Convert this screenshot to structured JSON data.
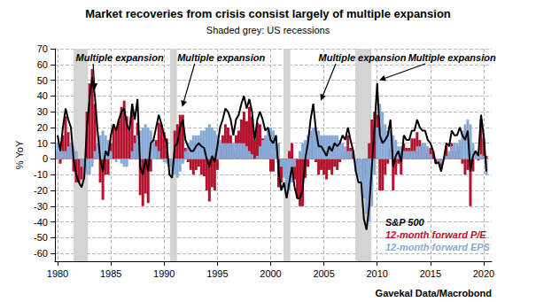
{
  "chart_data": {
    "type": "line",
    "title": "Market recoveries from crisis consist largely of multiple expansion",
    "subtitle": "Shaded grey: US recessions",
    "y_label": "% YoY",
    "source": "Gavekal Data/Macrobond",
    "xlim": [
      1979.75,
      2020.75
    ],
    "xticks": [
      1980,
      1985,
      1990,
      1995,
      2000,
      2005,
      2010,
      2015,
      2020
    ],
    "ylim": [
      -65,
      70
    ],
    "yticks": [
      -60,
      -50,
      -40,
      -30,
      -20,
      -10,
      0,
      10,
      20,
      30,
      40,
      50,
      60,
      70
    ],
    "grid": true,
    "stacked": true,
    "legend": "lower right",
    "recessions": [
      [
        1981.5,
        1982.85
      ],
      [
        1990.55,
        1991.2
      ],
      [
        2001.2,
        2001.85
      ],
      [
        2007.95,
        2009.45
      ]
    ],
    "annotations": [
      {
        "text": "Multiple expansion",
        "x": 1983.5,
        "y": 44
      },
      {
        "text": "Multiple expansion",
        "x": 1991.7,
        "y": 33
      },
      {
        "text": "Multiple expansion",
        "x": 2004.7,
        "y": 37
      },
      {
        "text": "Multiple expansion",
        "x": 2010.2,
        "y": 50
      }
    ],
    "x": [
      1980,
      1980.25,
      1980.5,
      1980.75,
      1981,
      1981.25,
      1981.5,
      1981.75,
      1982,
      1982.25,
      1982.5,
      1982.75,
      1983,
      1983.25,
      1983.5,
      1983.75,
      1984,
      1984.25,
      1984.5,
      1984.75,
      1985,
      1985.25,
      1985.5,
      1985.75,
      1986,
      1986.25,
      1986.5,
      1986.75,
      1987,
      1987.25,
      1987.5,
      1987.75,
      1988,
      1988.25,
      1988.5,
      1988.75,
      1989,
      1989.25,
      1989.5,
      1989.75,
      1990,
      1990.25,
      1990.5,
      1990.75,
      1991,
      1991.25,
      1991.5,
      1991.75,
      1992,
      1992.25,
      1992.5,
      1992.75,
      1993,
      1993.25,
      1993.5,
      1993.75,
      1994,
      1994.25,
      1994.5,
      1994.75,
      1995,
      1995.25,
      1995.5,
      1995.75,
      1996,
      1996.25,
      1996.5,
      1996.75,
      1997,
      1997.25,
      1997.5,
      1997.75,
      1998,
      1998.25,
      1998.5,
      1998.75,
      1999,
      1999.25,
      1999.5,
      1999.75,
      2000,
      2000.25,
      2000.5,
      2000.75,
      2001,
      2001.25,
      2001.5,
      2001.75,
      2002,
      2002.25,
      2002.5,
      2002.75,
      2003,
      2003.25,
      2003.5,
      2003.75,
      2004,
      2004.25,
      2004.5,
      2004.75,
      2005,
      2005.25,
      2005.5,
      2005.75,
      2006,
      2006.25,
      2006.5,
      2006.75,
      2007,
      2007.25,
      2007.5,
      2007.75,
      2008,
      2008.25,
      2008.5,
      2008.75,
      2009,
      2009.25,
      2009.5,
      2009.75,
      2010,
      2010.25,
      2010.5,
      2010.75,
      2011,
      2011.25,
      2011.5,
      2011.75,
      2012,
      2012.25,
      2012.5,
      2012.75,
      2013,
      2013.25,
      2013.5,
      2013.75,
      2014,
      2014.25,
      2014.5,
      2014.75,
      2015,
      2015.25,
      2015.5,
      2015.75,
      2016,
      2016.25,
      2016.5,
      2016.75,
      2017,
      2017.25,
      2017.5,
      2017.75,
      2018,
      2018.25,
      2018.5,
      2018.75,
      2019,
      2019.25,
      2019.5,
      2019.75,
      2020,
      2020.25
    ],
    "series": [
      {
        "name": "S&P 500",
        "type": "line",
        "color": "#000000",
        "values": [
          15,
          5,
          20,
          32,
          25,
          20,
          0,
          -10,
          -15,
          -18,
          -12,
          20,
          38,
          52,
          40,
          18,
          0,
          -8,
          5,
          2,
          15,
          22,
          18,
          25,
          30,
          32,
          22,
          18,
          35,
          25,
          38,
          -5,
          -10,
          0,
          -8,
          10,
          12,
          20,
          28,
          22,
          15,
          10,
          -10,
          -12,
          8,
          10,
          20,
          25,
          12,
          8,
          5,
          5,
          8,
          10,
          8,
          7,
          0,
          -5,
          2,
          -2,
          8,
          20,
          25,
          32,
          30,
          25,
          15,
          25,
          28,
          35,
          40,
          32,
          38,
          30,
          12,
          25,
          30,
          25,
          18,
          20,
          12,
          10,
          15,
          -8,
          -20,
          -15,
          -25,
          -15,
          -5,
          -18,
          -25,
          -25,
          -20,
          0,
          10,
          25,
          35,
          18,
          8,
          8,
          5,
          2,
          8,
          5,
          10,
          8,
          10,
          15,
          12,
          20,
          12,
          5,
          -8,
          -15,
          -15,
          -38,
          -45,
          -30,
          -5,
          20,
          48,
          15,
          10,
          12,
          15,
          25,
          -5,
          2,
          5,
          -2,
          15,
          12,
          12,
          18,
          18,
          25,
          20,
          18,
          18,
          12,
          10,
          5,
          -3,
          -2,
          -8,
          0,
          10,
          8,
          18,
          15,
          15,
          20,
          15,
          12,
          18,
          -8,
          2,
          5,
          2,
          28,
          15,
          -8
        ]
      },
      {
        "name": "12-month forward P/E",
        "type": "bar",
        "color": "#b5122e",
        "values": [
          5,
          -3,
          15,
          27,
          17,
          10,
          -8,
          -15,
          -15,
          -13,
          -4,
          30,
          48,
          57,
          35,
          8,
          -15,
          -26,
          -10,
          -10,
          10,
          22,
          20,
          25,
          33,
          37,
          27,
          18,
          30,
          15,
          23,
          -23,
          -30,
          -22,
          -28,
          -8,
          0,
          12,
          23,
          22,
          17,
          13,
          -5,
          -4,
          18,
          22,
          28,
          28,
          7,
          -2,
          -7,
          -10,
          -7,
          -5,
          -10,
          -11,
          -20,
          -27,
          -18,
          -20,
          -7,
          8,
          15,
          22,
          20,
          15,
          5,
          15,
          18,
          25,
          30,
          24,
          33,
          27,
          12,
          23,
          22,
          13,
          3,
          2,
          -8,
          -8,
          0,
          -18,
          -15,
          -3,
          -7,
          5,
          10,
          -13,
          -25,
          -30,
          -30,
          -12,
          -5,
          7,
          15,
          -2,
          -10,
          -7,
          -10,
          -13,
          -7,
          -10,
          -5,
          -7,
          -2,
          5,
          4,
          15,
          7,
          5,
          0,
          -3,
          0,
          -13,
          -10,
          10,
          25,
          30,
          28,
          -20,
          -20,
          -10,
          -3,
          7,
          -20,
          -10,
          -3,
          -10,
          10,
          7,
          7,
          13,
          13,
          17,
          12,
          8,
          8,
          4,
          7,
          5,
          -3,
          0,
          -5,
          0,
          8,
          3,
          10,
          5,
          5,
          8,
          -3,
          -10,
          -7,
          -30,
          -8,
          0,
          -1,
          25,
          13,
          2
        ]
      },
      {
        "name": "12-month forward EPS",
        "type": "bar",
        "color": "#86a9d6",
        "values": [
          10,
          8,
          5,
          5,
          8,
          10,
          8,
          5,
          0,
          -5,
          -8,
          -10,
          -10,
          -5,
          5,
          10,
          15,
          18,
          15,
          12,
          5,
          0,
          -2,
          0,
          -3,
          -5,
          -5,
          0,
          5,
          10,
          15,
          18,
          20,
          22,
          20,
          18,
          12,
          8,
          5,
          0,
          -2,
          -3,
          -5,
          -8,
          -10,
          -12,
          -8,
          -3,
          5,
          10,
          12,
          15,
          15,
          15,
          18,
          18,
          20,
          22,
          20,
          18,
          15,
          12,
          10,
          10,
          10,
          10,
          10,
          10,
          10,
          10,
          10,
          8,
          5,
          3,
          0,
          2,
          8,
          12,
          15,
          18,
          20,
          18,
          15,
          10,
          -5,
          -12,
          -18,
          -20,
          -15,
          -5,
          0,
          5,
          10,
          12,
          15,
          18,
          20,
          20,
          18,
          15,
          15,
          15,
          15,
          15,
          15,
          15,
          12,
          10,
          8,
          5,
          5,
          0,
          -8,
          -12,
          -15,
          -25,
          -35,
          -40,
          -30,
          -10,
          20,
          35,
          30,
          22,
          18,
          18,
          15,
          12,
          8,
          8,
          5,
          5,
          5,
          5,
          5,
          8,
          8,
          10,
          10,
          8,
          3,
          0,
          0,
          -2,
          -3,
          0,
          2,
          5,
          8,
          10,
          10,
          12,
          18,
          22,
          25,
          22,
          10,
          5,
          3,
          3,
          2,
          -10
        ]
      }
    ]
  }
}
